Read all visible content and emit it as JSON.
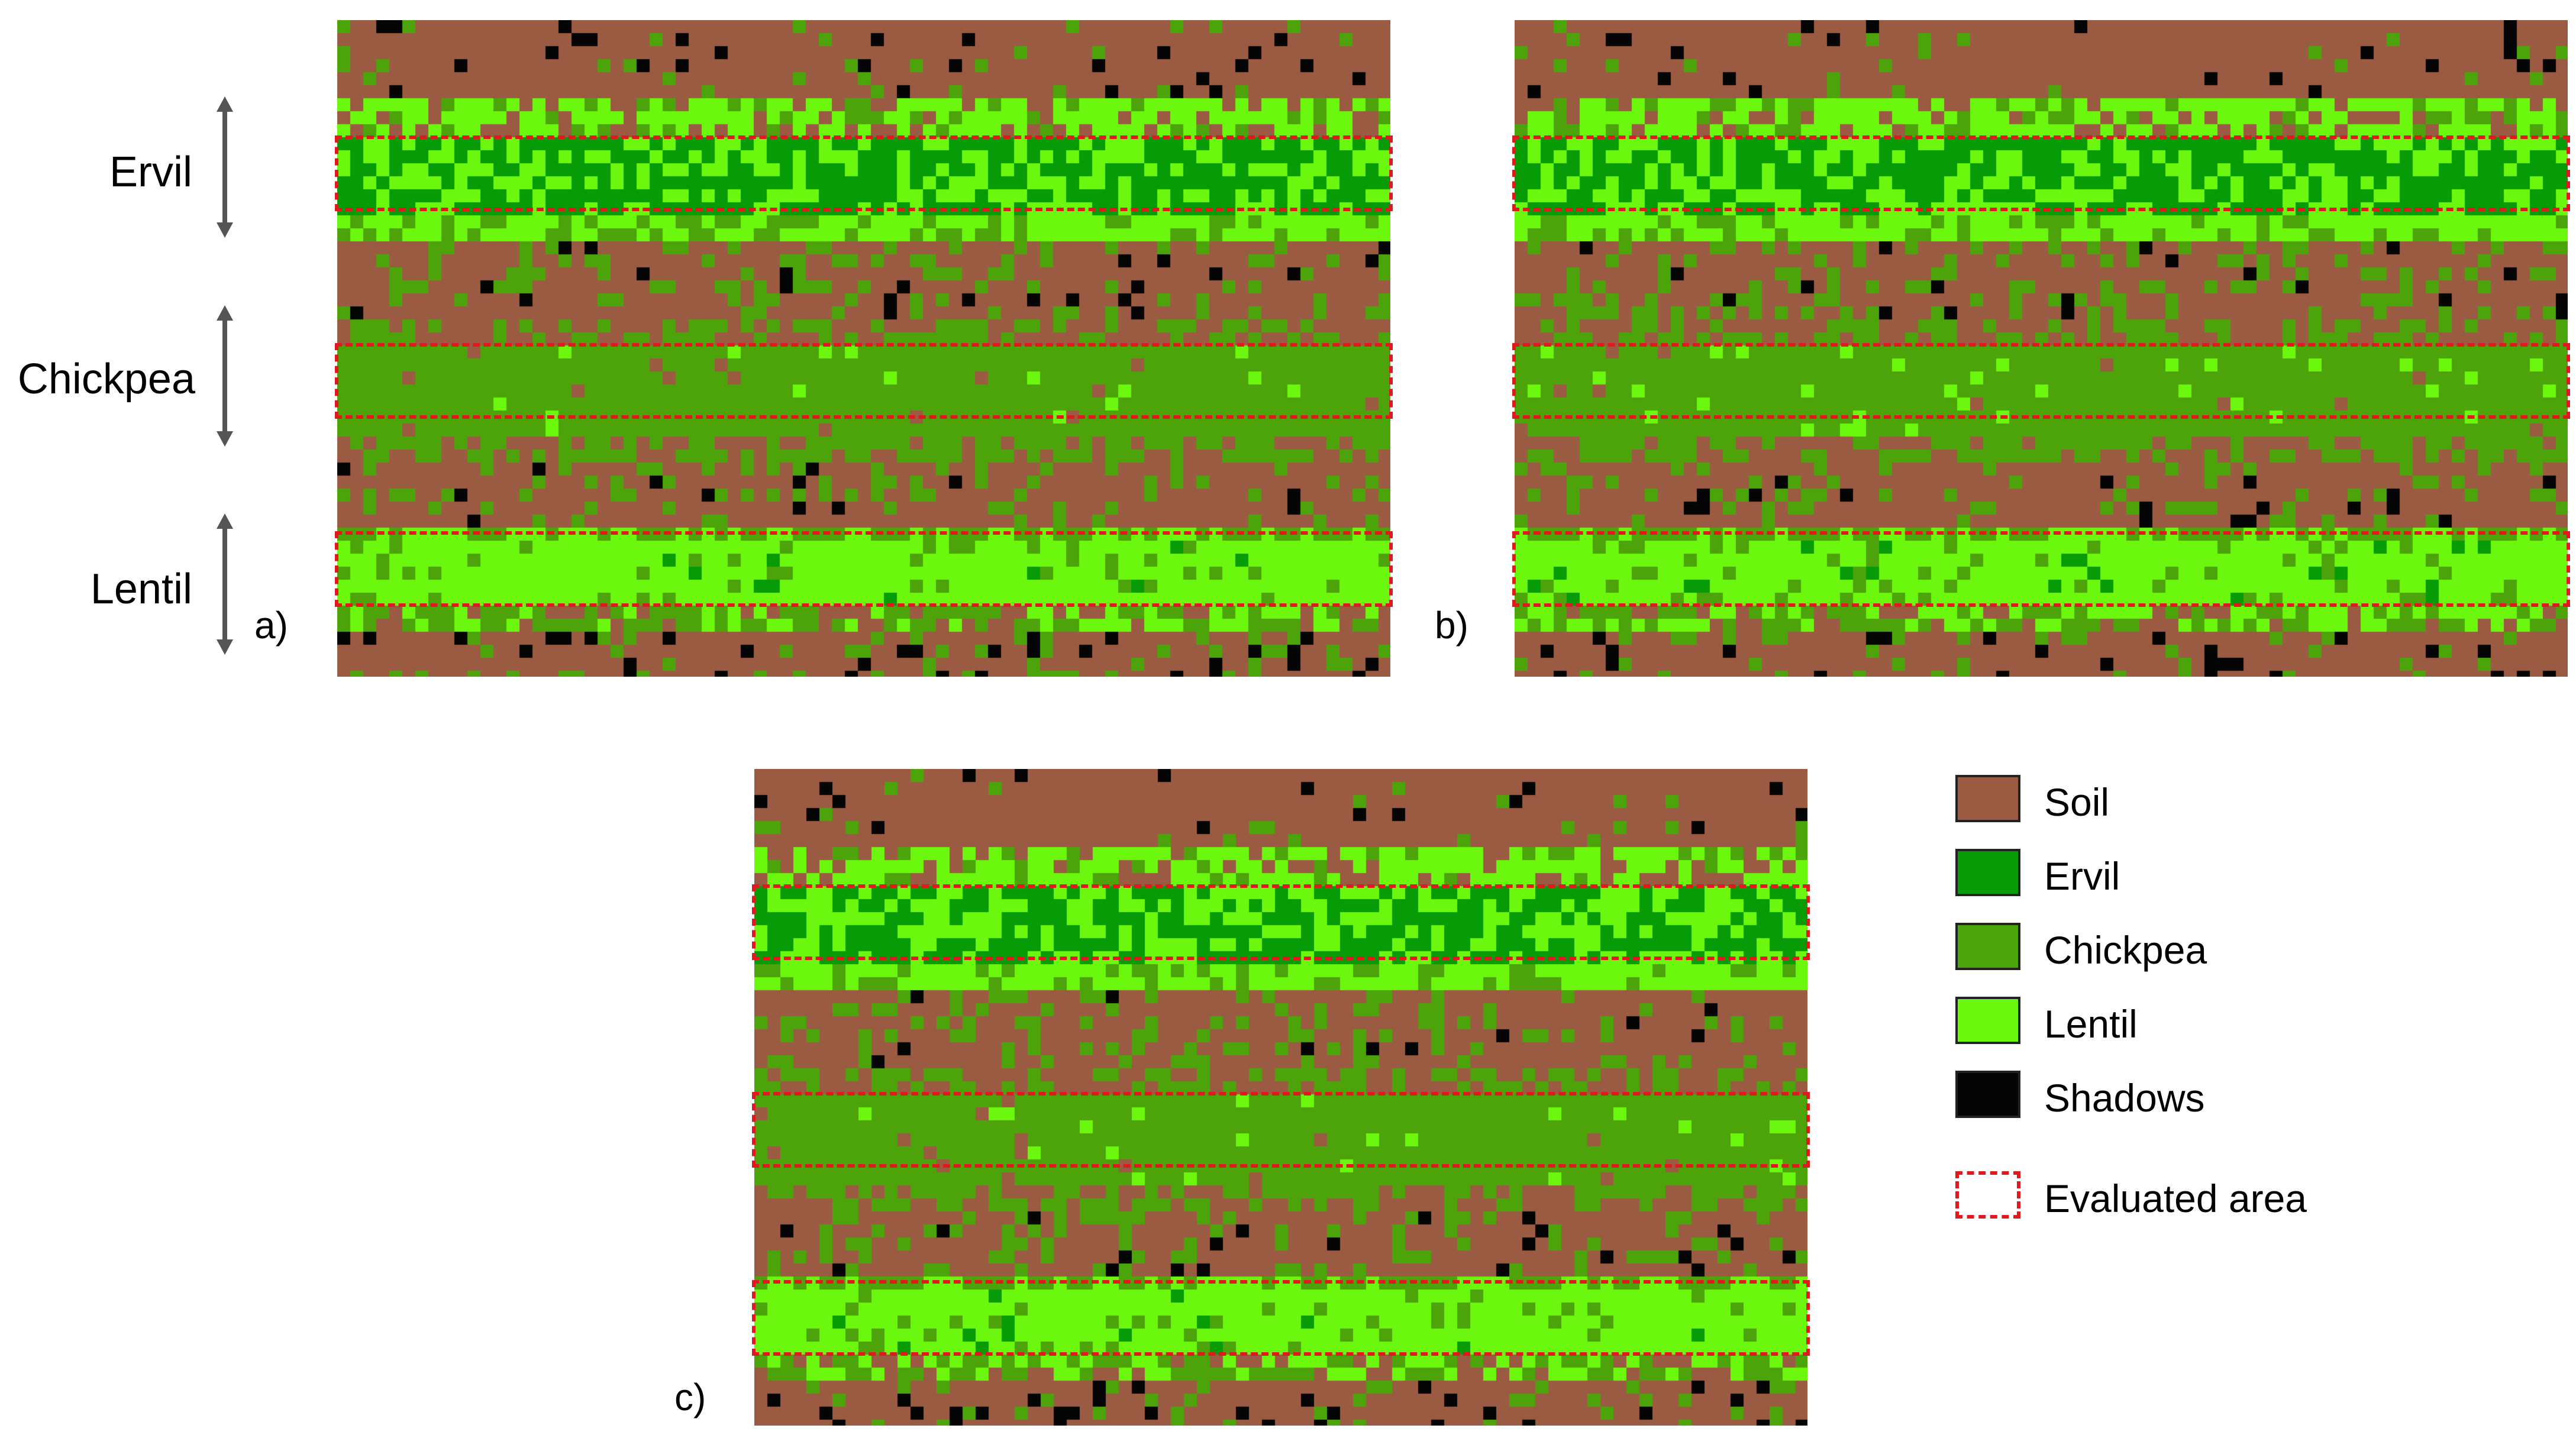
{
  "row_labels": {
    "ervil": "Ervil",
    "chickpea": "Chickpea",
    "lentil": "Lentil"
  },
  "panels": {
    "a": "a)",
    "b": "b)",
    "c": "c)"
  },
  "legend": {
    "soil": "Soil",
    "ervil": "Ervil",
    "chickpea": "Chickpea",
    "lentil": "Lentil",
    "shadows": "Shadows",
    "evaluated": "Evaluated area"
  },
  "colors": {
    "soil": "#9b5b43",
    "ervil": "#079b07",
    "chickpea": "#4da40a",
    "lentil": "#6cf70e",
    "shadows": "#050505",
    "evaluated": "#e0191f"
  }
}
